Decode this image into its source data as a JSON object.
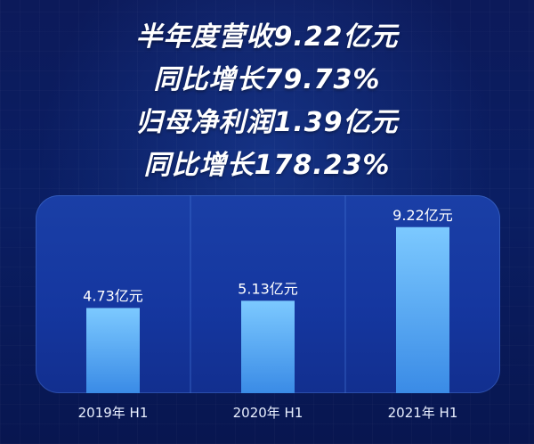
{
  "headlines": {
    "line1": "半年度营收9.22亿元",
    "line2": "同比增长79.73%",
    "line3": "归母净利润1.39亿元",
    "line4": "同比增长178.23%"
  },
  "chart_data": {
    "type": "bar",
    "categories": [
      "2019年 H1",
      "2020年 H1",
      "2021年 H1"
    ],
    "values": [
      4.73,
      5.13,
      9.22
    ],
    "value_labels": [
      "4.73亿元",
      "5.13亿元",
      "9.22亿元"
    ],
    "title": "",
    "xlabel": "",
    "ylabel": "",
    "ylim": [
      0,
      10
    ],
    "grid": false
  },
  "colors": {
    "bar_top": "#7cc9ff",
    "bar_bottom": "#3a8be6",
    "panel": "#1a3fa6",
    "divider": "#3f6fd0"
  }
}
